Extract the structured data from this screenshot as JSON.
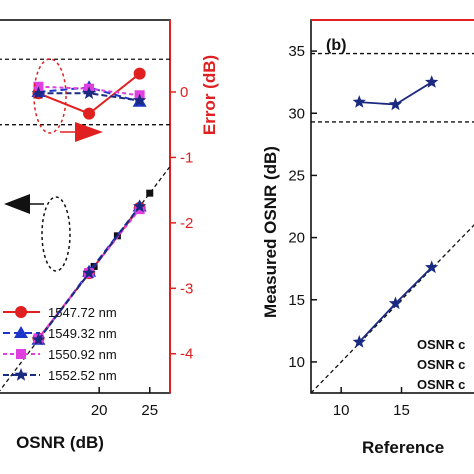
{
  "chart_data": [
    {
      "panel": "a",
      "type": "line",
      "xlabel": "OSNR (dB)",
      "ylabel_right": "Error (dB)",
      "xlim": [
        10,
        27
      ],
      "x_ticks": [
        "20",
        "25"
      ],
      "ylim_left": [
        10,
        38
      ],
      "ylim_right": [
        -4.6,
        1.1
      ],
      "y_ticks_right": [
        "0",
        "-1",
        "-2",
        "-3",
        "-4"
      ],
      "colors": {
        "axis_right": "#e02020",
        "s1": "#e02020",
        "s2": "#1a35c8",
        "s3": "#e040e0",
        "s4": "#1a2a80"
      },
      "error_series": [
        {
          "name": "1547.72 nm",
          "x": [
            14,
            19,
            24
          ],
          "y": [
            -0.02,
            -0.33,
            0.28
          ]
        },
        {
          "name": "1549.32 nm",
          "x": [
            14,
            19,
            24
          ],
          "y": [
            0.0,
            0.07,
            -0.15
          ]
        },
        {
          "name": "1550.92 nm",
          "x": [
            14,
            19,
            24
          ],
          "y": [
            0.08,
            0.05,
            -0.05
          ]
        },
        {
          "name": "1552.52 nm",
          "x": [
            14,
            19,
            24
          ],
          "y": [
            -0.02,
            -0.02,
            -0.13
          ]
        }
      ],
      "error_bounds": [
        0.5,
        -0.5
      ],
      "measured_series": [
        {
          "name": "1547.72 nm",
          "x": [
            14,
            19,
            24
          ],
          "y": [
            14.1,
            19.0,
            23.9
          ]
        },
        {
          "name": "1549.32 nm",
          "x": [
            14,
            19,
            24
          ],
          "y": [
            14.0,
            19.1,
            24.0
          ]
        },
        {
          "name": "1550.92 nm",
          "x": [
            14,
            19,
            24
          ],
          "y": [
            14.1,
            19.0,
            23.8
          ]
        },
        {
          "name": "1552.52 nm",
          "x": [
            14,
            19,
            24
          ],
          "y": [
            14.0,
            19.0,
            24.0
          ]
        }
      ],
      "reference_line": {
        "x": [
          10,
          27
        ],
        "y": [
          10,
          27
        ]
      },
      "reference_markers": {
        "x": [
          19.5,
          21.8,
          25.0
        ],
        "y": [
          19.5,
          21.8,
          25.0
        ]
      },
      "legend": [
        "1547.72 nm",
        "1549.32 nm",
        "1550.92 nm",
        "1552.52 nm"
      ]
    },
    {
      "panel": "b",
      "type": "line",
      "panel_label": "(b)",
      "xlabel": "Reference",
      "ylabel": "Measured OSNR (dB)",
      "xlim": [
        7.5,
        22
      ],
      "ylim": [
        7.5,
        37.5
      ],
      "x_ticks": [
        "10",
        "15"
      ],
      "y_ticks": [
        "10",
        "15",
        "20",
        "25",
        "30",
        "35"
      ],
      "color": "#1a2a80",
      "upper_series": {
        "x": [
          11.5,
          14.5,
          17.5
        ],
        "y": [
          30.9,
          30.7,
          32.5
        ]
      },
      "lower_series": {
        "x": [
          11.5,
          14.5,
          17.5
        ],
        "y": [
          11.6,
          14.7,
          17.6
        ]
      },
      "reference_line": {
        "x": [
          7.5,
          22
        ],
        "y": [
          7.5,
          22
        ]
      },
      "bounds": [
        34.8,
        29.3
      ],
      "notes": [
        "OSNR c",
        "OSNR c",
        "OSNR c"
      ]
    }
  ]
}
